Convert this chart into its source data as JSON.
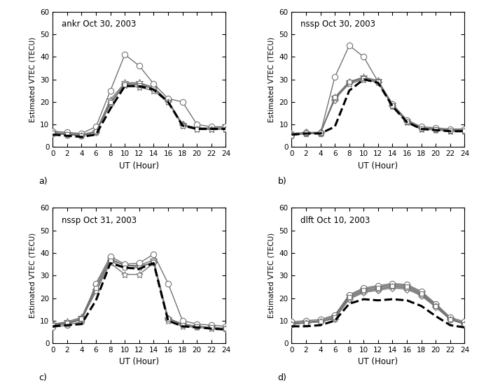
{
  "xticks": [
    0,
    2,
    4,
    6,
    8,
    10,
    12,
    14,
    16,
    18,
    20,
    22,
    24
  ],
  "ylim": [
    0,
    60
  ],
  "yticks": [
    0,
    10,
    20,
    30,
    40,
    50,
    60
  ],
  "xlabel": "UT (Hour)",
  "ylabel": "Estimated VTEC (TECU)",
  "figsize": [
    6.84,
    5.58
  ],
  "subplots": [
    {
      "label": "ankr Oct 30, 2003",
      "sublabel": "a)",
      "series": {
        "ionolab": [
          5.5,
          5.0,
          4.5,
          5.5,
          17.0,
          27.0,
          27.0,
          25.5,
          20.0,
          9.5,
          8.0,
          8.0,
          8.0
        ],
        "jpl": [
          6.0,
          5.5,
          5.0,
          6.5,
          19.0,
          28.0,
          28.0,
          26.0,
          20.5,
          10.0,
          8.5,
          8.5,
          8.5
        ],
        "code": [
          6.5,
          6.0,
          5.5,
          7.0,
          21.0,
          28.5,
          28.5,
          26.5,
          20.5,
          10.0,
          8.5,
          8.0,
          8.0
        ],
        "esa": [
          7.0,
          6.5,
          6.0,
          9.0,
          25.0,
          41.0,
          36.0,
          28.0,
          21.5,
          20.0,
          10.0,
          9.0,
          9.0
        ],
        "upc": [
          6.0,
          5.5,
          5.0,
          6.5,
          19.5,
          27.5,
          26.5,
          25.0,
          20.0,
          9.5,
          8.0,
          8.0,
          8.0
        ],
        "igs": [
          6.2,
          5.8,
          5.2,
          6.8,
          20.0,
          27.8,
          27.5,
          25.8,
          20.0,
          9.5,
          8.0,
          7.8,
          8.0
        ]
      }
    },
    {
      "label": "nssp Oct 30, 2003",
      "sublabel": "b)",
      "series": {
        "ionolab": [
          5.5,
          6.0,
          6.0,
          9.0,
          25.0,
          30.0,
          28.5,
          18.0,
          11.0,
          8.0,
          7.5,
          7.0,
          7.0
        ],
        "jpl": [
          6.0,
          6.5,
          6.5,
          21.0,
          28.5,
          30.5,
          29.0,
          18.5,
          11.5,
          8.5,
          8.0,
          7.5,
          7.5
        ],
        "code": [
          5.5,
          6.0,
          6.0,
          22.0,
          29.0,
          31.0,
          29.5,
          19.0,
          11.5,
          8.5,
          8.0,
          7.5,
          7.5
        ],
        "esa": [
          5.5,
          6.0,
          6.0,
          31.0,
          45.0,
          40.0,
          29.0,
          19.0,
          12.0,
          9.0,
          8.5,
          8.0,
          8.0
        ],
        "upc": [
          5.0,
          6.0,
          6.0,
          21.5,
          28.0,
          30.0,
          28.5,
          18.0,
          11.0,
          8.0,
          7.5,
          7.0,
          7.0
        ],
        "igs": [
          5.2,
          6.2,
          6.2,
          22.0,
          29.0,
          30.5,
          29.0,
          18.5,
          11.2,
          8.2,
          7.8,
          7.2,
          7.2
        ]
      }
    },
    {
      "label": "nssp Oct 31, 2003",
      "sublabel": "c)",
      "series": {
        "ionolab": [
          7.5,
          8.0,
          8.5,
          19.0,
          35.5,
          33.5,
          33.0,
          35.5,
          10.0,
          7.5,
          7.0,
          6.5,
          6.0
        ],
        "jpl": [
          8.5,
          9.0,
          10.5,
          24.0,
          37.0,
          34.5,
          34.0,
          36.0,
          11.0,
          8.5,
          7.5,
          7.0,
          6.5
        ],
        "code": [
          8.5,
          9.5,
          11.5,
          25.5,
          37.5,
          34.5,
          34.5,
          37.0,
          11.0,
          8.5,
          7.5,
          7.0,
          6.5
        ],
        "esa": [
          7.0,
          8.0,
          9.5,
          26.5,
          38.5,
          35.0,
          35.5,
          39.5,
          26.5,
          10.0,
          8.5,
          8.0,
          7.5
        ],
        "upc": [
          8.0,
          8.5,
          10.5,
          23.0,
          35.5,
          30.5,
          30.5,
          35.5,
          10.0,
          7.5,
          7.0,
          6.5,
          6.5
        ],
        "igs": [
          8.2,
          9.0,
          11.0,
          24.5,
          36.5,
          33.5,
          33.5,
          36.0,
          11.0,
          8.0,
          7.5,
          7.0,
          6.5
        ]
      }
    },
    {
      "label": "dlft Oct 10, 2003",
      "sublabel": "d)",
      "series": {
        "ionolab": [
          7.5,
          7.5,
          8.0,
          10.0,
          17.5,
          19.5,
          19.0,
          19.5,
          19.0,
          16.5,
          12.0,
          8.0,
          7.0
        ],
        "jpl": [
          8.5,
          9.0,
          9.5,
          11.0,
          19.5,
          22.5,
          23.5,
          24.5,
          24.0,
          21.0,
          16.0,
          10.5,
          8.5
        ],
        "code": [
          9.0,
          9.5,
          10.0,
          12.0,
          21.0,
          24.0,
          25.0,
          26.0,
          25.5,
          22.5,
          17.0,
          11.0,
          9.0
        ],
        "esa": [
          9.5,
          10.0,
          10.5,
          12.5,
          21.5,
          24.5,
          25.5,
          26.5,
          26.0,
          23.0,
          17.5,
          11.5,
          9.5
        ],
        "upc": [
          8.5,
          9.0,
          9.5,
          11.0,
          20.0,
          23.0,
          24.0,
          25.0,
          24.5,
          21.5,
          16.5,
          10.5,
          8.5
        ],
        "igs": [
          8.5,
          9.0,
          9.5,
          11.5,
          20.5,
          23.5,
          24.5,
          25.5,
          25.0,
          22.0,
          16.5,
          10.5,
          8.5
        ]
      }
    }
  ]
}
